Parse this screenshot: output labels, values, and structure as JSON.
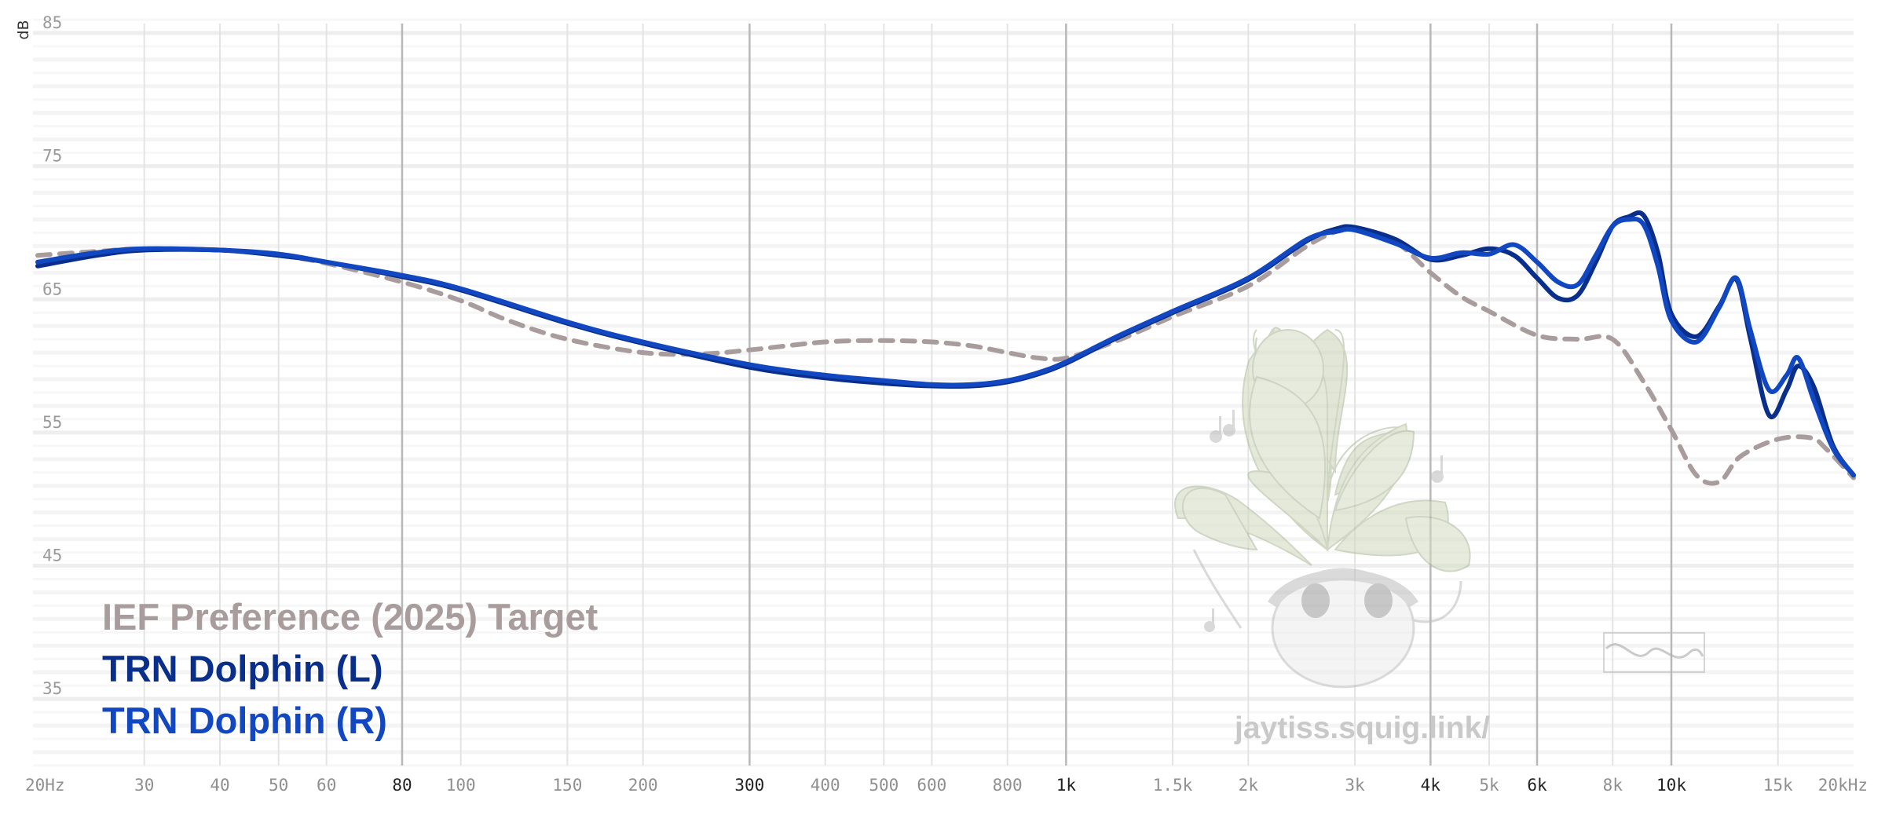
{
  "chart_data": {
    "type": "line",
    "xscale": "log",
    "xlim": [
      20,
      20000
    ],
    "ylim": [
      30,
      86
    ],
    "ylabel": "dB",
    "grid": true,
    "legend_position": "bottom-left",
    "y_ticks": [
      {
        "value": 85,
        "label": "85"
      },
      {
        "value": 75,
        "label": "75"
      },
      {
        "value": 65,
        "label": "65"
      },
      {
        "value": 55,
        "label": "55"
      },
      {
        "value": 45,
        "label": "45"
      },
      {
        "value": 35,
        "label": "35"
      }
    ],
    "x_ticks": [
      {
        "value": 20,
        "label": "20Hz",
        "major": false
      },
      {
        "value": 30,
        "label": "30",
        "major": false
      },
      {
        "value": 40,
        "label": "40",
        "major": false
      },
      {
        "value": 50,
        "label": "50",
        "major": false
      },
      {
        "value": 60,
        "label": "60",
        "major": false
      },
      {
        "value": 80,
        "label": "80",
        "major": true
      },
      {
        "value": 100,
        "label": "100",
        "major": false
      },
      {
        "value": 150,
        "label": "150",
        "major": false
      },
      {
        "value": 200,
        "label": "200",
        "major": false
      },
      {
        "value": 300,
        "label": "300",
        "major": true
      },
      {
        "value": 400,
        "label": "400",
        "major": false
      },
      {
        "value": 500,
        "label": "500",
        "major": false
      },
      {
        "value": 600,
        "label": "600",
        "major": false
      },
      {
        "value": 800,
        "label": "800",
        "major": false
      },
      {
        "value": 1000,
        "label": "1k",
        "major": true
      },
      {
        "value": 1500,
        "label": "1.5k",
        "major": false
      },
      {
        "value": 2000,
        "label": "2k",
        "major": false
      },
      {
        "value": 3000,
        "label": "3k",
        "major": false
      },
      {
        "value": 4000,
        "label": "4k",
        "major": true
      },
      {
        "value": 5000,
        "label": "5k",
        "major": false
      },
      {
        "value": 6000,
        "label": "6k",
        "major": true
      },
      {
        "value": 8000,
        "label": "8k",
        "major": false
      },
      {
        "value": 10000,
        "label": "10k",
        "major": true
      },
      {
        "value": 15000,
        "label": "15k",
        "major": false
      },
      {
        "value": 20000,
        "label": "20kHz",
        "major": false
      }
    ],
    "series": [
      {
        "name": "IEF Preference (2025) Target",
        "color": "#a89c9c",
        "dashed": true,
        "x": [
          20,
          25,
          30,
          40,
          50,
          60,
          80,
          100,
          120,
          150,
          200,
          250,
          300,
          400,
          500,
          600,
          700,
          800,
          900,
          1000,
          1200,
          1500,
          2000,
          2500,
          2800,
          3000,
          3500,
          4000,
          4500,
          5000,
          6000,
          7000,
          8000,
          9000,
          10000,
          11000,
          12000,
          13000,
          15000,
          17000,
          18000,
          20000
        ],
        "values": [
          68.3,
          68.6,
          68.8,
          68.7,
          68.3,
          67.7,
          66.3,
          64.9,
          63.4,
          62.0,
          61.0,
          60.9,
          61.2,
          61.8,
          61.9,
          61.8,
          61.5,
          61.0,
          60.6,
          60.6,
          61.8,
          63.7,
          66.0,
          69.0,
          70.1,
          70.2,
          69.3,
          67.0,
          65.2,
          64.1,
          62.3,
          62.0,
          62.0,
          58.8,
          55.2,
          51.8,
          51.3,
          53.2,
          54.5,
          54.6,
          53.8,
          51.6
        ]
      },
      {
        "name": "TRN Dolphin (L)",
        "color": "#0a2f8a",
        "dashed": false,
        "x": [
          20,
          25,
          30,
          40,
          50,
          60,
          80,
          100,
          150,
          200,
          300,
          400,
          500,
          600,
          700,
          800,
          900,
          1000,
          1200,
          1500,
          2000,
          2500,
          2800,
          3000,
          3500,
          4000,
          4500,
          5000,
          5500,
          6000,
          6500,
          7000,
          7500,
          8000,
          8500,
          9000,
          9500,
          10000,
          11000,
          12000,
          12800,
          13500,
          14500,
          15500,
          16200,
          17200,
          18500,
          20000
        ],
        "values": [
          67.5,
          68.3,
          68.7,
          68.7,
          68.3,
          67.8,
          66.7,
          65.7,
          63.2,
          61.7,
          59.9,
          59.1,
          58.7,
          58.5,
          58.5,
          58.8,
          59.4,
          60.2,
          62.0,
          64.0,
          66.5,
          69.4,
          70.3,
          70.4,
          69.5,
          68.0,
          68.3,
          68.8,
          68.3,
          66.6,
          65.1,
          65.3,
          67.8,
          70.5,
          71.2,
          71.3,
          68.5,
          63.9,
          62.2,
          64.5,
          66.5,
          62.1,
          56.3,
          58.2,
          60.0,
          58.4,
          54.0,
          51.8
        ]
      },
      {
        "name": "TRN Dolphin (R)",
        "color": "#1147c0",
        "dashed": false,
        "x": [
          20,
          25,
          30,
          40,
          50,
          60,
          80,
          100,
          150,
          200,
          300,
          400,
          500,
          600,
          700,
          800,
          900,
          1000,
          1200,
          1500,
          2000,
          2500,
          2800,
          3000,
          3500,
          4000,
          4500,
          5000,
          5500,
          6000,
          6500,
          7000,
          7500,
          8000,
          8500,
          9000,
          9500,
          10000,
          11000,
          12000,
          12800,
          13500,
          14500,
          15500,
          16200,
          17200,
          18500,
          20000
        ],
        "values": [
          67.8,
          68.5,
          68.8,
          68.7,
          68.4,
          67.8,
          66.8,
          65.8,
          63.3,
          61.8,
          60.1,
          59.3,
          58.9,
          58.6,
          58.6,
          58.9,
          59.5,
          60.3,
          62.1,
          64.1,
          66.6,
          69.5,
          70.1,
          70.2,
          69.2,
          68.1,
          68.5,
          68.4,
          69.1,
          67.8,
          66.3,
          66.1,
          68.3,
          70.5,
          71.0,
          70.6,
          67.5,
          63.4,
          61.8,
          64.4,
          66.6,
          62.7,
          58.2,
          59.3,
          60.6,
          57.4,
          53.8,
          51.8
        ]
      }
    ]
  },
  "watermark": {
    "text": "jaytiss.squig.link/",
    "icon": "sprout-mascot-icon"
  }
}
